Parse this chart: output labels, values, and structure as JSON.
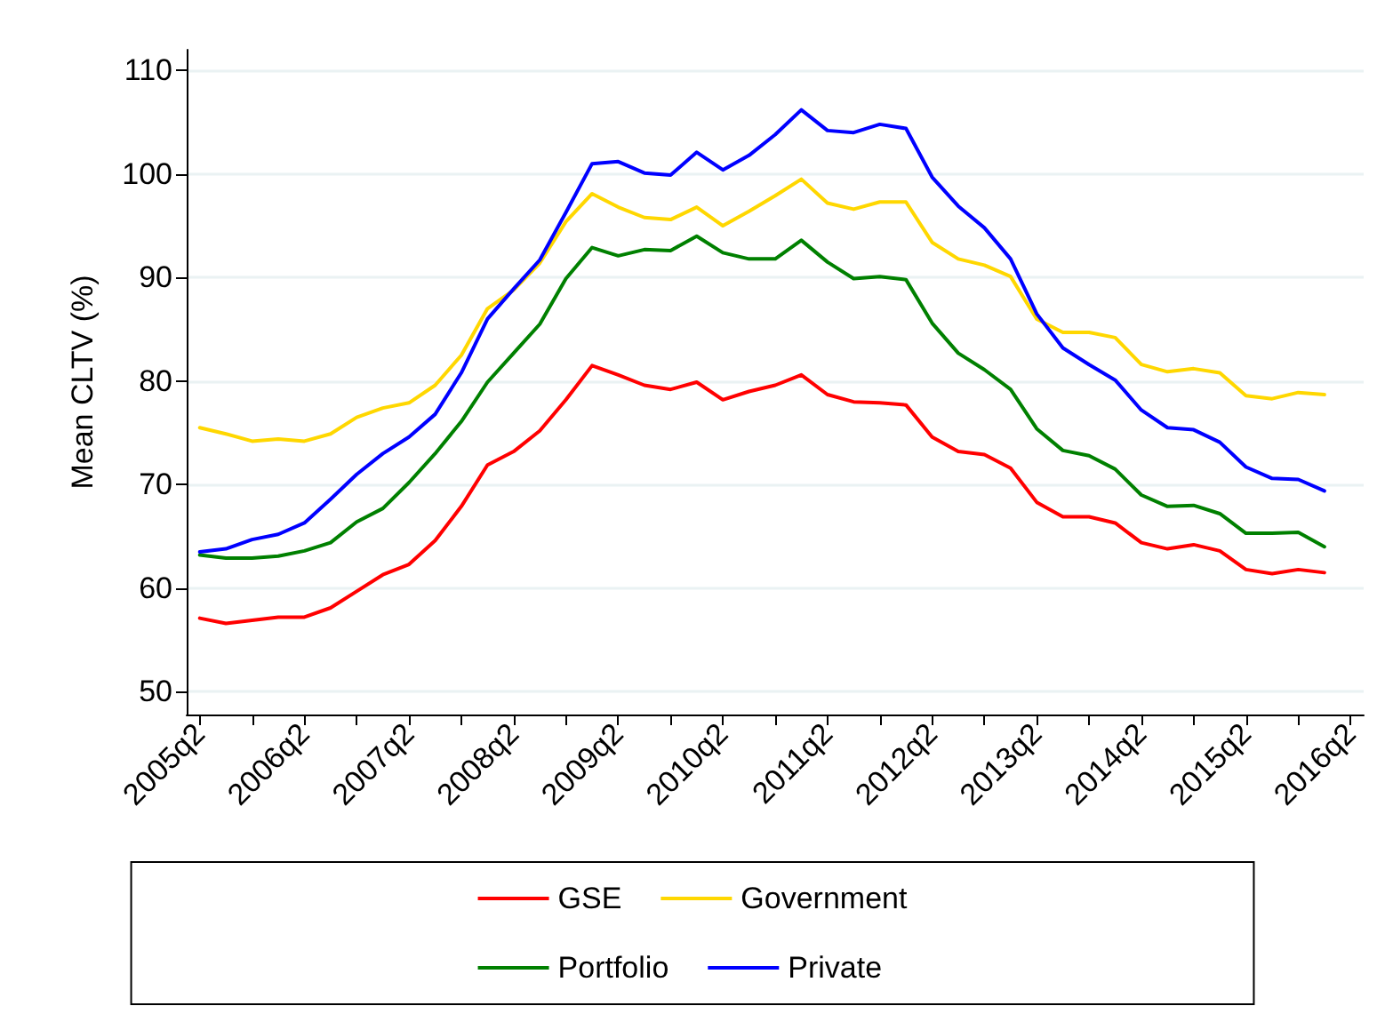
{
  "chart_data": {
    "type": "line",
    "ylabel": "Mean CLTV (%)",
    "categories": [
      "2005q2",
      null,
      null,
      null,
      "2006q2",
      null,
      null,
      null,
      "2007q2",
      null,
      null,
      null,
      "2008q2",
      null,
      null,
      null,
      "2009q2",
      null,
      null,
      null,
      "2010q2",
      null,
      null,
      null,
      "2011q2",
      null,
      null,
      null,
      "2012q2",
      null,
      null,
      null,
      "2013q2",
      null,
      null,
      null,
      "2014q2",
      null,
      null,
      null,
      "2015q2",
      null,
      null,
      null,
      "2016q2"
    ],
    "series": [
      {
        "name": "GSE",
        "color": "#ff0000",
        "values": [
          57.1,
          56.6,
          56.9,
          57.2,
          57.2,
          58.1,
          59.7,
          61.3,
          62.3,
          64.6,
          67.9,
          71.9,
          73.2,
          75.2,
          78.2,
          81.5,
          80.6,
          79.6,
          79.2,
          79.9,
          78.2,
          79.0,
          79.6,
          80.6,
          78.7,
          78.0,
          77.9,
          77.7,
          74.6,
          73.2,
          72.9,
          71.6,
          68.3,
          66.9,
          66.9,
          66.3,
          64.4,
          63.8,
          64.2,
          63.6,
          61.8,
          61.4,
          61.8,
          61.5,
          null
        ]
      },
      {
        "name": "Government",
        "color": "#ffd700",
        "values": [
          75.5,
          74.9,
          74.2,
          74.4,
          74.2,
          74.9,
          76.5,
          77.4,
          77.9,
          79.6,
          82.5,
          87.0,
          88.8,
          91.4,
          95.4,
          98.1,
          96.8,
          95.8,
          95.6,
          96.8,
          95.0,
          96.4,
          97.9,
          99.5,
          97.2,
          96.6,
          97.3,
          97.3,
          93.4,
          91.8,
          91.2,
          90.1,
          86.0,
          84.7,
          84.7,
          84.2,
          81.6,
          80.9,
          81.2,
          80.8,
          78.6,
          78.3,
          78.9,
          78.7,
          null
        ]
      },
      {
        "name": "Portfolio",
        "color": "#008000",
        "values": [
          63.2,
          62.9,
          62.9,
          63.1,
          63.6,
          64.4,
          66.4,
          67.7,
          70.2,
          73.0,
          76.1,
          79.9,
          82.7,
          85.5,
          89.9,
          92.9,
          92.1,
          92.7,
          92.6,
          94.0,
          92.4,
          91.8,
          91.8,
          93.6,
          91.5,
          89.9,
          90.1,
          89.8,
          85.6,
          82.7,
          81.1,
          79.2,
          75.4,
          73.3,
          72.8,
          71.5,
          69.0,
          67.9,
          68.0,
          67.2,
          65.3,
          65.3,
          65.4,
          64.0,
          null
        ]
      },
      {
        "name": "Private",
        "color": "#0000ff",
        "values": [
          63.5,
          63.8,
          64.7,
          65.2,
          66.3,
          68.6,
          71.0,
          73.0,
          74.6,
          76.8,
          80.8,
          86.0,
          88.9,
          91.7,
          96.3,
          101.0,
          101.2,
          100.1,
          99.9,
          102.1,
          100.4,
          101.8,
          103.8,
          106.2,
          104.2,
          104.0,
          104.8,
          104.4,
          99.7,
          96.9,
          94.8,
          91.8,
          86.5,
          83.2,
          81.6,
          80.1,
          77.2,
          75.5,
          75.3,
          74.1,
          71.7,
          70.6,
          70.5,
          69.4,
          null
        ]
      }
    ],
    "ylim": [
      47.8,
      112
    ],
    "yticks": [
      50,
      60,
      70,
      80,
      90,
      100,
      110
    ],
    "grid": "y",
    "legend": "bottom",
    "marker": "none",
    "line_style": "solid"
  }
}
